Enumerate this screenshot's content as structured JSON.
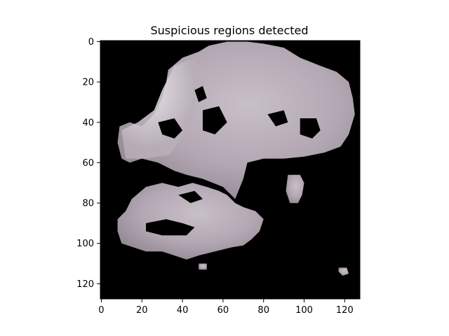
{
  "chart_data": {
    "type": "heatmap",
    "title": "Suspicious regions detected",
    "image_shape": [
      128,
      128
    ],
    "background_color": "#000000",
    "highlight_color": "#c8c0c8",
    "x_ticks": [
      0,
      20,
      40,
      60,
      80,
      100,
      120
    ],
    "x_tick_labels": [
      "0",
      "20",
      "40",
      "60",
      "80",
      "100",
      "120"
    ],
    "y_ticks": [
      0,
      20,
      40,
      60,
      80,
      100,
      120
    ],
    "y_tick_labels": [
      "0",
      "20",
      "40",
      "60",
      "80",
      "100",
      "120"
    ],
    "xlim": [
      -0.5,
      127.5
    ],
    "ylim": [
      127.5,
      -0.5
    ],
    "regions": [
      {
        "name": "upper-cloud",
        "points": [
          [
            33,
            14
          ],
          [
            40,
            8
          ],
          [
            48,
            5
          ],
          [
            53,
            2
          ],
          [
            62,
            0
          ],
          [
            72,
            0
          ],
          [
            80,
            1
          ],
          [
            90,
            3
          ],
          [
            98,
            8
          ],
          [
            108,
            12
          ],
          [
            116,
            15
          ],
          [
            122,
            20
          ],
          [
            124,
            28
          ],
          [
            125,
            36
          ],
          [
            122,
            46
          ],
          [
            118,
            52
          ],
          [
            110,
            55
          ],
          [
            100,
            57
          ],
          [
            90,
            58
          ],
          [
            80,
            58
          ],
          [
            72,
            60
          ],
          [
            70,
            68
          ],
          [
            66,
            78
          ],
          [
            60,
            72
          ],
          [
            50,
            68
          ],
          [
            42,
            66
          ],
          [
            36,
            64
          ],
          [
            28,
            60
          ],
          [
            20,
            58
          ],
          [
            14,
            60
          ],
          [
            10,
            58
          ],
          [
            8,
            50
          ],
          [
            9,
            42
          ],
          [
            14,
            40
          ],
          [
            20,
            42
          ],
          [
            26,
            36
          ],
          [
            30,
            28
          ],
          [
            32,
            20
          ]
        ]
      },
      {
        "name": "lower-cloud",
        "points": [
          [
            15,
            78
          ],
          [
            22,
            72
          ],
          [
            30,
            70
          ],
          [
            38,
            72
          ],
          [
            45,
            70
          ],
          [
            52,
            72
          ],
          [
            58,
            74
          ],
          [
            62,
            76
          ],
          [
            66,
            80
          ],
          [
            70,
            82
          ],
          [
            76,
            84
          ],
          [
            80,
            88
          ],
          [
            78,
            94
          ],
          [
            74,
            98
          ],
          [
            70,
            101
          ],
          [
            64,
            102
          ],
          [
            56,
            104
          ],
          [
            48,
            106
          ],
          [
            42,
            108
          ],
          [
            36,
            106
          ],
          [
            30,
            104
          ],
          [
            22,
            104
          ],
          [
            16,
            102
          ],
          [
            10,
            100
          ],
          [
            8,
            94
          ],
          [
            8,
            88
          ],
          [
            12,
            84
          ]
        ]
      },
      {
        "name": "right-blob",
        "points": [
          [
            92,
            66
          ],
          [
            98,
            66
          ],
          [
            100,
            70
          ],
          [
            99,
            76
          ],
          [
            97,
            80
          ],
          [
            93,
            80
          ],
          [
            91,
            74
          ]
        ]
      },
      {
        "name": "small-dot-bottom",
        "points": [
          [
            117,
            112
          ],
          [
            121,
            112
          ],
          [
            122,
            115
          ],
          [
            119,
            116
          ],
          [
            117,
            114
          ]
        ]
      },
      {
        "name": "tiny-dot-bottom",
        "points": [
          [
            48,
            110
          ],
          [
            52,
            110
          ],
          [
            52,
            113
          ],
          [
            48,
            113
          ]
        ]
      }
    ],
    "holes": [
      {
        "name": "hole-left-mid",
        "points": [
          [
            28,
            40
          ],
          [
            36,
            38
          ],
          [
            40,
            44
          ],
          [
            36,
            48
          ],
          [
            30,
            46
          ]
        ]
      },
      {
        "name": "hole-center",
        "points": [
          [
            50,
            34
          ],
          [
            58,
            32
          ],
          [
            62,
            40
          ],
          [
            56,
            46
          ],
          [
            50,
            44
          ]
        ]
      },
      {
        "name": "hole-right",
        "points": [
          [
            98,
            38
          ],
          [
            106,
            38
          ],
          [
            108,
            44
          ],
          [
            104,
            48
          ],
          [
            98,
            46
          ]
        ]
      },
      {
        "name": "hole-eye",
        "points": [
          [
            82,
            36
          ],
          [
            90,
            34
          ],
          [
            92,
            40
          ],
          [
            86,
            42
          ]
        ]
      },
      {
        "name": "hole-top-left",
        "points": [
          [
            46,
            24
          ],
          [
            50,
            22
          ],
          [
            52,
            28
          ],
          [
            48,
            30
          ]
        ]
      },
      {
        "name": "hole-lower-1",
        "points": [
          [
            22,
            90
          ],
          [
            32,
            88
          ],
          [
            40,
            90
          ],
          [
            46,
            92
          ],
          [
            42,
            96
          ],
          [
            30,
            96
          ],
          [
            22,
            94
          ]
        ]
      },
      {
        "name": "hole-lower-2",
        "points": [
          [
            38,
            76
          ],
          [
            46,
            74
          ],
          [
            50,
            78
          ],
          [
            44,
            80
          ]
        ]
      }
    ]
  }
}
